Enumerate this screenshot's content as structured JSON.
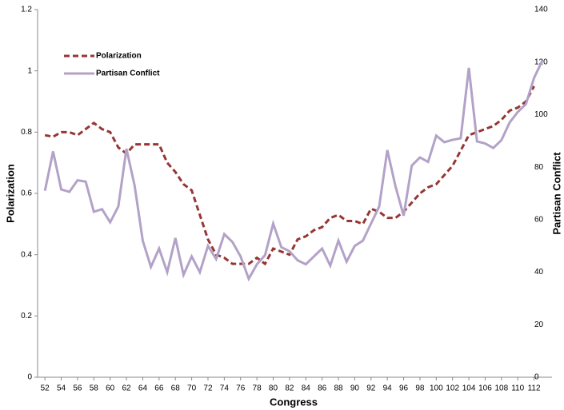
{
  "chart_data": {
    "type": "line",
    "x_label": "Congress",
    "y_label": "Polarization",
    "y2_label": "Partisan Conflict",
    "x": [
      52,
      53,
      54,
      55,
      56,
      57,
      58,
      59,
      60,
      61,
      62,
      63,
      64,
      65,
      66,
      67,
      68,
      69,
      70,
      71,
      72,
      73,
      74,
      75,
      76,
      77,
      78,
      79,
      80,
      81,
      82,
      83,
      84,
      85,
      86,
      87,
      88,
      89,
      90,
      91,
      92,
      93,
      94,
      95,
      96,
      97,
      98,
      99,
      100,
      101,
      102,
      103,
      104,
      105,
      106,
      107,
      108,
      109,
      110,
      111,
      112,
      113
    ],
    "series": [
      {
        "name": "Polarization",
        "color": "#953735",
        "dash": true,
        "values": [
          0.79,
          0.785,
          0.8,
          0.8,
          0.79,
          0.81,
          0.83,
          0.81,
          0.8,
          0.75,
          0.73,
          0.76,
          0.76,
          0.76,
          0.76,
          0.7,
          0.67,
          0.63,
          0.61,
          0.53,
          0.45,
          0.4,
          0.39,
          0.37,
          0.37,
          0.37,
          0.39,
          0.37,
          0.42,
          0.41,
          0.4,
          0.45,
          0.46,
          0.48,
          0.49,
          0.52,
          0.53,
          0.51,
          0.51,
          0.5,
          0.55,
          0.54,
          0.52,
          0.52,
          0.54,
          0.57,
          0.6,
          0.62,
          0.63,
          0.66,
          0.69,
          0.74,
          0.79,
          0.8,
          0.81,
          0.82,
          0.84,
          0.87,
          0.88,
          0.9,
          0.95,
          null
        ]
      },
      {
        "name": "Partisan Conflict",
        "color": "#b3a2c7",
        "axis": "y2",
        "values": [
          71,
          86,
          71.5,
          70.6,
          75,
          74.5,
          63,
          64,
          59,
          65,
          87,
          73,
          52,
          42,
          49,
          40,
          53,
          39,
          46,
          40,
          50,
          45,
          54.5,
          51.5,
          46,
          37.5,
          43,
          46.5,
          58.5,
          49.5,
          48,
          44.5,
          43,
          46,
          49,
          42.5,
          52,
          44,
          50,
          52,
          58.5,
          65,
          86.5,
          72.7,
          61.5,
          80.6,
          83.7,
          82,
          92,
          89.5,
          90.4,
          91,
          117.8,
          89.8,
          89,
          87.3,
          90.3,
          97,
          101,
          104,
          114,
          120.5
        ]
      }
    ],
    "xlim": [
      51.1,
      114.2
    ],
    "xticks": [
      52,
      54,
      56,
      58,
      60,
      62,
      64,
      66,
      68,
      70,
      72,
      74,
      76,
      78,
      80,
      82,
      84,
      86,
      88,
      90,
      92,
      94,
      96,
      98,
      100,
      102,
      104,
      106,
      108,
      110,
      112
    ],
    "ylim": [
      0,
      1.2
    ],
    "yticks": [
      0,
      0.2,
      0.4,
      0.6,
      0.8,
      1,
      1.2
    ],
    "y2lim": [
      0,
      140
    ],
    "y2ticks": [
      0,
      20,
      40,
      60,
      80,
      100,
      120,
      140
    ],
    "legend": "upper-left"
  }
}
